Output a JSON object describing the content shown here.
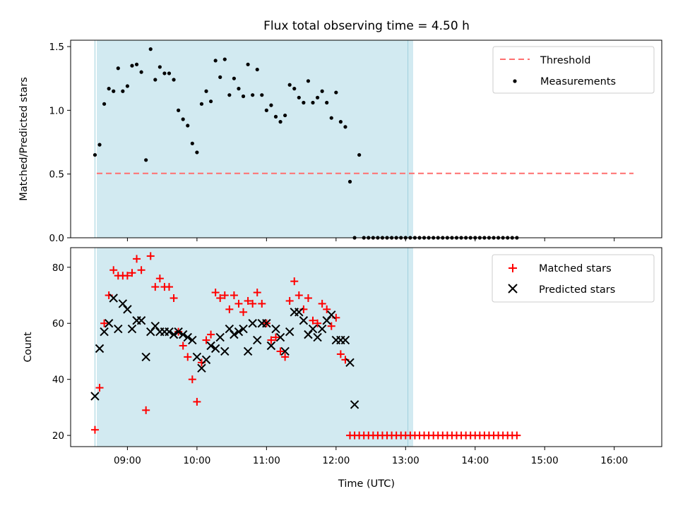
{
  "chart_data": [
    {
      "type": "scatter",
      "title": "Flux total observing time = 4.50 h",
      "xlabel": "",
      "ylabel": "Matched/Predicted stars",
      "xlim": [
        "08:11",
        "16:41"
      ],
      "ylim": [
        0,
        1.55
      ],
      "y_ticks": [
        "0.0",
        "0.5",
        "1.0",
        "1.5"
      ],
      "x_ticks": [
        "09:00",
        "10:00",
        "11:00",
        "12:00",
        "13:00",
        "14:00",
        "15:00",
        "16:00"
      ],
      "shaded_interval": [
        "08:32",
        "13:02"
      ],
      "shaded_color": "#add8e6",
      "threshold": {
        "name": "Threshold",
        "value": 0.5,
        "x_range": [
          "08:32",
          "16:10"
        ],
        "color": "#ff6f6f"
      },
      "legend": {
        "position": "top-right",
        "entries": [
          "Threshold",
          "Measurements"
        ]
      },
      "series": [
        {
          "name": "Measurements",
          "color": "#000000",
          "marker": "dot",
          "points": [
            [
              "08:32",
              0.65
            ],
            [
              "08:36",
              0.73
            ],
            [
              "08:40",
              1.05
            ],
            [
              "08:44",
              1.17
            ],
            [
              "08:48",
              1.15
            ],
            [
              "08:52",
              1.33
            ],
            [
              "08:56",
              1.15
            ],
            [
              "09:00",
              1.19
            ],
            [
              "09:04",
              1.35
            ],
            [
              "09:08",
              1.36
            ],
            [
              "09:12",
              1.3
            ],
            [
              "09:16",
              0.61
            ],
            [
              "09:20",
              1.48
            ],
            [
              "09:24",
              1.24
            ],
            [
              "09:28",
              1.34
            ],
            [
              "09:32",
              1.29
            ],
            [
              "09:36",
              1.29
            ],
            [
              "09:40",
              1.24
            ],
            [
              "09:44",
              1.0
            ],
            [
              "09:48",
              0.93
            ],
            [
              "09:52",
              0.88
            ],
            [
              "09:56",
              0.74
            ],
            [
              "10:00",
              0.67
            ],
            [
              "10:04",
              1.05
            ],
            [
              "10:08",
              1.15
            ],
            [
              "10:12",
              1.07
            ],
            [
              "10:16",
              1.39
            ],
            [
              "10:20",
              1.26
            ],
            [
              "10:24",
              1.4
            ],
            [
              "10:28",
              1.12
            ],
            [
              "10:32",
              1.25
            ],
            [
              "10:36",
              1.17
            ],
            [
              "10:40",
              1.11
            ],
            [
              "10:44",
              1.36
            ],
            [
              "10:48",
              1.12
            ],
            [
              "10:52",
              1.32
            ],
            [
              "10:56",
              1.12
            ],
            [
              "11:00",
              1.0
            ],
            [
              "11:04",
              1.04
            ],
            [
              "11:08",
              0.95
            ],
            [
              "11:12",
              0.91
            ],
            [
              "11:16",
              0.96
            ],
            [
              "11:20",
              1.2
            ],
            [
              "11:24",
              1.17
            ],
            [
              "11:28",
              1.1
            ],
            [
              "11:32",
              1.06
            ],
            [
              "11:36",
              1.23
            ],
            [
              "11:40",
              1.06
            ],
            [
              "11:44",
              1.1
            ],
            [
              "11:48",
              1.15
            ],
            [
              "11:52",
              1.06
            ],
            [
              "11:56",
              0.94
            ],
            [
              "12:00",
              1.14
            ],
            [
              "12:04",
              0.91
            ],
            [
              "12:08",
              0.87
            ],
            [
              "12:12",
              0.44
            ],
            [
              "12:16",
              0.0
            ],
            [
              "12:20",
              0.65
            ],
            [
              "12:24",
              0.0
            ],
            [
              "12:28",
              0.0
            ],
            [
              "12:32",
              0.0
            ],
            [
              "12:36",
              0.0
            ],
            [
              "12:40",
              0.0
            ],
            [
              "12:44",
              0.0
            ],
            [
              "12:48",
              0.0
            ],
            [
              "12:52",
              0.0
            ],
            [
              "12:56",
              0.0
            ],
            [
              "13:00",
              0.0
            ],
            [
              "13:04",
              0.0
            ],
            [
              "13:08",
              0.0
            ],
            [
              "13:12",
              0.0
            ],
            [
              "13:16",
              0.0
            ],
            [
              "13:20",
              0.0
            ],
            [
              "13:24",
              0.0
            ],
            [
              "13:28",
              0.0
            ],
            [
              "13:32",
              0.0
            ],
            [
              "13:36",
              0.0
            ],
            [
              "13:40",
              0.0
            ],
            [
              "13:44",
              0.0
            ],
            [
              "13:48",
              0.0
            ],
            [
              "13:52",
              0.0
            ],
            [
              "13:56",
              0.0
            ],
            [
              "14:00",
              0.0
            ],
            [
              "14:04",
              0.0
            ],
            [
              "14:08",
              0.0
            ],
            [
              "14:12",
              0.0
            ],
            [
              "14:16",
              0.0
            ],
            [
              "14:20",
              0.0
            ],
            [
              "14:24",
              0.0
            ],
            [
              "14:28",
              0.0
            ],
            [
              "14:32",
              0.0
            ],
            [
              "14:36",
              0.0
            ]
          ]
        }
      ]
    },
    {
      "type": "scatter",
      "title": "",
      "xlabel": "Time (UTC)",
      "ylabel": "Count",
      "xlim": [
        "08:11",
        "16:41"
      ],
      "ylim": [
        16,
        87
      ],
      "y_ticks": [
        "20",
        "40",
        "60",
        "80"
      ],
      "x_ticks": [
        "09:00",
        "10:00",
        "11:00",
        "12:00",
        "13:00",
        "14:00",
        "15:00",
        "16:00"
      ],
      "shaded_interval": [
        "08:32",
        "13:02"
      ],
      "shaded_color": "#add8e6",
      "legend": {
        "position": "top-right",
        "entries": [
          "Matched stars",
          "Predicted stars"
        ]
      },
      "series": [
        {
          "name": "Matched stars",
          "color": "#ff0000",
          "marker": "plus",
          "points": [
            [
              "08:32",
              22
            ],
            [
              "08:36",
              37
            ],
            [
              "08:40",
              60
            ],
            [
              "08:44",
              70
            ],
            [
              "08:48",
              79
            ],
            [
              "08:52",
              77
            ],
            [
              "08:56",
              77
            ],
            [
              "09:00",
              77
            ],
            [
              "09:04",
              78
            ],
            [
              "09:08",
              83
            ],
            [
              "09:12",
              79
            ],
            [
              "09:16",
              29
            ],
            [
              "09:20",
              84
            ],
            [
              "09:24",
              73
            ],
            [
              "09:28",
              76
            ],
            [
              "09:32",
              73
            ],
            [
              "09:36",
              73
            ],
            [
              "09:40",
              69
            ],
            [
              "09:44",
              57
            ],
            [
              "09:48",
              52
            ],
            [
              "09:52",
              48
            ],
            [
              "09:56",
              40
            ],
            [
              "10:00",
              32
            ],
            [
              "10:04",
              46
            ],
            [
              "10:08",
              54
            ],
            [
              "10:12",
              56
            ],
            [
              "10:16",
              71
            ],
            [
              "10:20",
              69
            ],
            [
              "10:24",
              70
            ],
            [
              "10:28",
              65
            ],
            [
              "10:32",
              70
            ],
            [
              "10:36",
              67
            ],
            [
              "10:40",
              64
            ],
            [
              "10:44",
              68
            ],
            [
              "10:48",
              67
            ],
            [
              "10:52",
              71
            ],
            [
              "10:56",
              67
            ],
            [
              "11:00",
              60
            ],
            [
              "11:04",
              54
            ],
            [
              "11:08",
              55
            ],
            [
              "11:12",
              50
            ],
            [
              "11:16",
              48
            ],
            [
              "11:20",
              68
            ],
            [
              "11:24",
              75
            ],
            [
              "11:28",
              70
            ],
            [
              "11:32",
              65
            ],
            [
              "11:36",
              69
            ],
            [
              "11:40",
              61
            ],
            [
              "11:44",
              60
            ],
            [
              "11:48",
              67
            ],
            [
              "11:52",
              65
            ],
            [
              "11:56",
              59
            ],
            [
              "12:00",
              62
            ],
            [
              "12:04",
              49
            ],
            [
              "12:08",
              47
            ],
            [
              "12:12",
              20
            ],
            [
              "12:16",
              20
            ],
            [
              "12:20",
              20
            ],
            [
              "12:24",
              20
            ],
            [
              "12:28",
              20
            ],
            [
              "12:32",
              20
            ],
            [
              "12:36",
              20
            ],
            [
              "12:40",
              20
            ],
            [
              "12:44",
              20
            ],
            [
              "12:48",
              20
            ],
            [
              "12:52",
              20
            ],
            [
              "12:56",
              20
            ],
            [
              "13:00",
              20
            ],
            [
              "13:04",
              20
            ],
            [
              "13:08",
              20
            ],
            [
              "13:12",
              20
            ],
            [
              "13:16",
              20
            ],
            [
              "13:20",
              20
            ],
            [
              "13:24",
              20
            ],
            [
              "13:28",
              20
            ],
            [
              "13:32",
              20
            ],
            [
              "13:36",
              20
            ],
            [
              "13:40",
              20
            ],
            [
              "13:44",
              20
            ],
            [
              "13:48",
              20
            ],
            [
              "13:52",
              20
            ],
            [
              "13:56",
              20
            ],
            [
              "14:00",
              20
            ],
            [
              "14:04",
              20
            ],
            [
              "14:08",
              20
            ],
            [
              "14:12",
              20
            ],
            [
              "14:16",
              20
            ],
            [
              "14:20",
              20
            ],
            [
              "14:24",
              20
            ],
            [
              "14:28",
              20
            ],
            [
              "14:32",
              20
            ],
            [
              "14:36",
              20
            ]
          ]
        },
        {
          "name": "Predicted stars",
          "color": "#000000",
          "marker": "x",
          "points": [
            [
              "08:32",
              34
            ],
            [
              "08:36",
              51
            ],
            [
              "08:40",
              57
            ],
            [
              "08:44",
              60
            ],
            [
              "08:48",
              69
            ],
            [
              "08:52",
              58
            ],
            [
              "08:56",
              67
            ],
            [
              "09:00",
              65
            ],
            [
              "09:04",
              58
            ],
            [
              "09:08",
              61
            ],
            [
              "09:12",
              61
            ],
            [
              "09:16",
              48
            ],
            [
              "09:20",
              57
            ],
            [
              "09:24",
              59
            ],
            [
              "09:28",
              57
            ],
            [
              "09:32",
              57
            ],
            [
              "09:36",
              57
            ],
            [
              "09:40",
              56
            ],
            [
              "09:44",
              57
            ],
            [
              "09:48",
              56
            ],
            [
              "09:52",
              55
            ],
            [
              "09:56",
              54
            ],
            [
              "10:00",
              48
            ],
            [
              "10:04",
              44
            ],
            [
              "10:08",
              47
            ],
            [
              "10:12",
              52
            ],
            [
              "10:16",
              51
            ],
            [
              "10:20",
              55
            ],
            [
              "10:24",
              50
            ],
            [
              "10:28",
              58
            ],
            [
              "10:32",
              56
            ],
            [
              "10:36",
              57
            ],
            [
              "10:40",
              58
            ],
            [
              "10:44",
              50
            ],
            [
              "10:48",
              60
            ],
            [
              "10:52",
              54
            ],
            [
              "10:56",
              60
            ],
            [
              "11:00",
              60
            ],
            [
              "11:04",
              52
            ],
            [
              "11:08",
              58
            ],
            [
              "11:12",
              55
            ],
            [
              "11:16",
              50
            ],
            [
              "11:20",
              57
            ],
            [
              "11:24",
              64
            ],
            [
              "11:28",
              64
            ],
            [
              "11:32",
              61
            ],
            [
              "11:36",
              56
            ],
            [
              "11:40",
              58
            ],
            [
              "11:44",
              55
            ],
            [
              "11:48",
              58
            ],
            [
              "11:52",
              61
            ],
            [
              "11:56",
              63
            ],
            [
              "12:00",
              54
            ],
            [
              "12:04",
              54
            ],
            [
              "12:08",
              54
            ],
            [
              "12:12",
              46
            ],
            [
              "12:16",
              31
            ]
          ]
        }
      ]
    }
  ]
}
